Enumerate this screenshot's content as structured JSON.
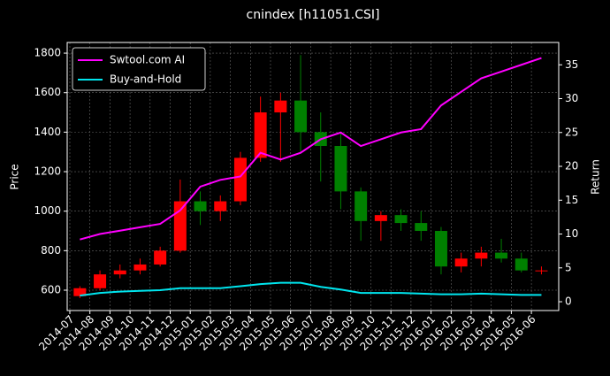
{
  "chart_data": {
    "type": "candlestick",
    "title": "cnindex [h11051.CSI]",
    "ylabel": "Price",
    "y2label": "Return",
    "categories": [
      "2014-07",
      "2014-08",
      "2014-09",
      "2014-10",
      "2014-11",
      "2014-12",
      "2015-01",
      "2015-02",
      "2015-03",
      "2015-04",
      "2015-05",
      "2015-06",
      "2015-07",
      "2015-08",
      "2015-09",
      "2015-10",
      "2015-11",
      "2015-12",
      "2016-01",
      "2016-02",
      "2016-03",
      "2016-04",
      "2016-05",
      "2016-06"
    ],
    "open": [
      570,
      610,
      680,
      700,
      730,
      800,
      1050,
      1000,
      1050,
      1270,
      1500,
      1560,
      1400,
      1330,
      1100,
      950,
      980,
      940,
      900,
      720,
      760,
      790,
      760,
      700
    ],
    "high": [
      620,
      700,
      730,
      760,
      820,
      1160,
      1100,
      1080,
      1300,
      1580,
      1600,
      1790,
      1500,
      1400,
      1120,
      1000,
      1010,
      1000,
      920,
      790,
      820,
      860,
      790,
      720
    ],
    "low": [
      560,
      600,
      660,
      680,
      720,
      790,
      930,
      950,
      1030,
      1250,
      1250,
      1300,
      1150,
      1010,
      850,
      850,
      900,
      850,
      680,
      690,
      720,
      740,
      690,
      680
    ],
    "close": [
      610,
      680,
      700,
      730,
      800,
      1050,
      1000,
      1050,
      1270,
      1500,
      1560,
      1400,
      1330,
      1100,
      950,
      980,
      940,
      900,
      720,
      760,
      790,
      760,
      700,
      700
    ],
    "up_color": "#ff0000",
    "down_color": "#008000",
    "series": [
      {
        "name": "Swtool.com AI",
        "color": "#ff00ff",
        "axis": "y2",
        "values": [
          9.2,
          10,
          10.5,
          11,
          11.5,
          13.5,
          17,
          18,
          18.5,
          22,
          21,
          22,
          24,
          25,
          23,
          24,
          25,
          25.5,
          29,
          31,
          33,
          34,
          35,
          36
        ]
      },
      {
        "name": "Buy-and-Hold",
        "color": "#00e5ee",
        "axis": "y2",
        "values": [
          0.9,
          1.3,
          1.5,
          1.6,
          1.7,
          2,
          2,
          2,
          2.3,
          2.6,
          2.8,
          2.8,
          2.2,
          1.8,
          1.3,
          1.3,
          1.3,
          1.2,
          1.1,
          1.1,
          1.2,
          1.1,
          1.0,
          1.0
        ]
      }
    ],
    "ylim": [
      497,
      1854
    ],
    "yticks": [
      600,
      800,
      1000,
      1200,
      1400,
      1600,
      1800
    ],
    "y2lim": [
      -1.3,
      38.3
    ],
    "y2ticks": [
      0,
      5,
      10,
      15,
      20,
      25,
      30,
      35
    ],
    "grid": true,
    "legend": "upper left"
  }
}
